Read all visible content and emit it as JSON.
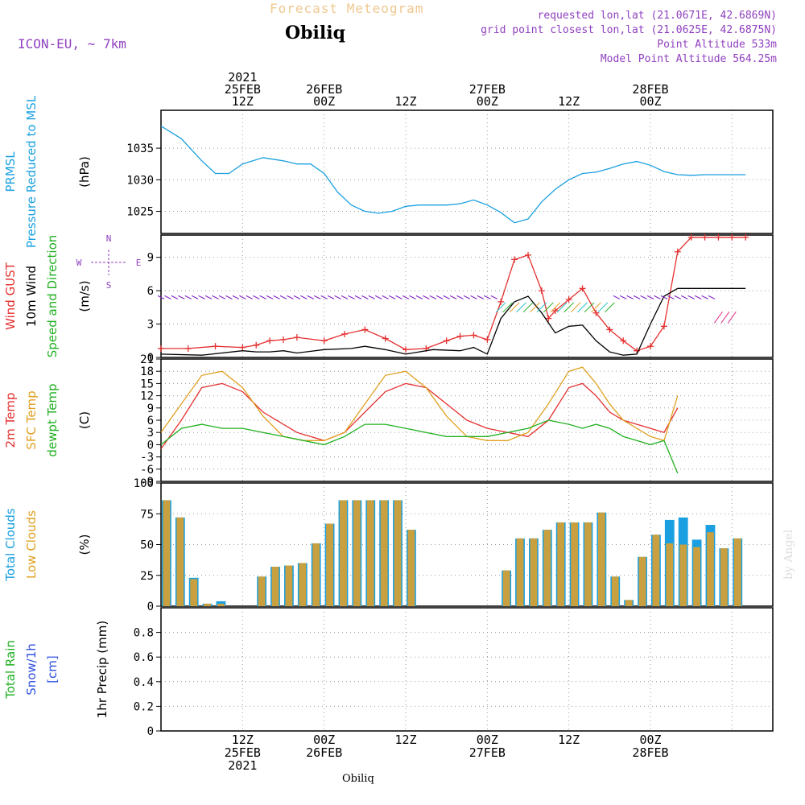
{
  "header": {
    "app_title": "Forecast Meteogram",
    "location": "Obiliq",
    "model": "ICON-EU, ~ 7km",
    "requested": "requested lon,lat (21.0671E, 42.6869N)",
    "grid_point": "grid point closest lon,lat (21.0625E, 42.6875N)",
    "point_alt": "Point Altitude 533m",
    "model_alt": "Model Point Altitude 564.25m",
    "footer_location": "Obiliq",
    "credit": "by Angel"
  },
  "time_axis": {
    "top": [
      {
        "t": 12,
        "lines": [
          "2021",
          "25FEB",
          "12Z"
        ]
      },
      {
        "t": 24,
        "lines": [
          "26FEB",
          "00Z"
        ]
      },
      {
        "t": 36,
        "lines": [
          "12Z"
        ]
      },
      {
        "t": 48,
        "lines": [
          "27FEB",
          "00Z"
        ]
      },
      {
        "t": 60,
        "lines": [
          "12Z"
        ]
      },
      {
        "t": 72,
        "lines": [
          "28FEB",
          "00Z"
        ]
      }
    ],
    "bottom": [
      {
        "t": 12,
        "lines": [
          "12Z",
          "25FEB",
          "2021"
        ]
      },
      {
        "t": 24,
        "lines": [
          "00Z",
          "26FEB"
        ]
      },
      {
        "t": 36,
        "lines": [
          "12Z"
        ]
      },
      {
        "t": 48,
        "lines": [
          "00Z",
          "27FEB"
        ]
      },
      {
        "t": 60,
        "lines": [
          "12Z"
        ]
      },
      {
        "t": 72,
        "lines": [
          "00Z",
          "28FEB"
        ]
      }
    ]
  },
  "panels": {
    "pressure": {
      "labels": [
        {
          "text": "PRMSL",
          "color": "#1aa0e0"
        },
        {
          "text": "Pressure Reduced to MSL",
          "color": "#1aa0e0"
        }
      ],
      "unit": "(hPa)",
      "ticks": [
        1025,
        1030,
        1035
      ]
    },
    "wind": {
      "labels": [
        {
          "text": "Wind GUST",
          "color": "#e53030"
        },
        {
          "text": "10m Wind",
          "color": "#000000"
        },
        {
          "text": "Speed and Direction",
          "color": "#20b020"
        }
      ],
      "unit": "(m/s)",
      "ticks": [
        0,
        3,
        6,
        9
      ],
      "compass": {
        "n": "N",
        "s": "S",
        "w": "W",
        "e": "E"
      }
    },
    "temp": {
      "labels": [
        {
          "text": "2m Temp",
          "color": "#e53030"
        },
        {
          "text": "SFC Temp",
          "color": "#e0a020"
        },
        {
          "text": "dewpt Temp",
          "color": "#20b020"
        }
      ],
      "unit": "(C)",
      "ticks": [
        -9,
        -6,
        -3,
        0,
        3,
        6,
        9,
        12,
        15,
        18,
        21
      ]
    },
    "clouds": {
      "labels": [
        {
          "text": "Total Clouds",
          "color": "#1aa0e0"
        },
        {
          "text": "Low Clouds",
          "color": "#e0a020"
        }
      ],
      "unit": "(%)",
      "ticks": [
        0,
        25,
        50,
        75,
        100
      ]
    },
    "precip": {
      "labels": [
        {
          "text": "Total Rain",
          "color": "#20b020"
        },
        {
          "text": "Snow/1h",
          "color": "#3050e0"
        },
        {
          "text": "[cm]",
          "color": "#3050e0"
        }
      ],
      "unit": "1hr Precip (mm)",
      "ticks": [
        "0",
        "0.2",
        "0.4",
        "0.6",
        "0.8"
      ]
    }
  },
  "colors": {
    "pressure": "#1aa0e0",
    "gust": "#e53030",
    "wind": "#000000",
    "t2m": "#e53030",
    "tsfc": "#e0a020",
    "dewpt": "#20b020",
    "total_cloud": "#1aa0e0",
    "low_cloud": "#c8a040",
    "model_text": "#9040c0"
  },
  "chart_data": [
    {
      "type": "line",
      "series": [
        {
          "name": "PRMSL",
          "x": [
            0,
            3,
            6,
            8,
            10,
            12,
            15,
            18,
            20,
            22,
            24,
            26,
            28,
            30,
            32,
            34,
            36,
            38,
            40,
            42,
            44,
            46,
            48,
            50,
            52,
            54,
            56,
            58,
            60,
            62,
            64,
            66,
            68,
            70,
            72,
            74,
            76,
            78,
            80,
            82,
            84,
            86
          ],
          "values": [
            1038.5,
            1036.5,
            1033,
            1031,
            1031,
            1032.5,
            1033.5,
            1033,
            1032.5,
            1032.5,
            1031,
            1028,
            1026,
            1025,
            1024.7,
            1025,
            1025.8,
            1026,
            1026,
            1026,
            1026.2,
            1026.8,
            1026,
            1024.8,
            1023.2,
            1023.8,
            1026.5,
            1028.5,
            1030,
            1031,
            1031.2,
            1031.8,
            1032.5,
            1032.9,
            1032.3,
            1031.3,
            1030.8,
            1030.7,
            1030.8,
            1030.8,
            1030.8,
            1030.8
          ]
        }
      ],
      "ylim": [
        1021.5,
        1041
      ]
    },
    {
      "type": "line",
      "series": [
        {
          "name": "Wind GUST",
          "x": [
            0,
            4,
            8,
            12,
            14,
            16,
            18,
            20,
            24,
            27,
            30,
            33,
            36,
            39,
            42,
            44,
            46,
            48,
            50,
            52,
            54,
            56,
            57,
            58,
            60,
            62,
            64,
            66,
            68,
            70,
            72,
            74,
            76,
            78,
            80,
            82,
            84,
            86
          ],
          "values": [
            0.8,
            0.8,
            1,
            0.9,
            1.1,
            1.5,
            1.6,
            1.8,
            1.5,
            2.1,
            2.5,
            1.7,
            0.7,
            0.8,
            1.5,
            1.9,
            2.0,
            1.6,
            5.0,
            8.8,
            9.2,
            6.0,
            3.5,
            4.2,
            5.2,
            6.2,
            4.0,
            2.5,
            1.5,
            0.6,
            1.0,
            2.8,
            9.5,
            10.8,
            10.8,
            10.8,
            10.8,
            10.8
          ]
        },
        {
          "name": "10m Wind",
          "x": [
            0,
            6,
            12,
            14,
            16,
            18,
            20,
            24,
            28,
            30,
            33,
            36,
            40,
            44,
            46,
            48,
            50,
            52,
            54,
            56,
            58,
            60,
            62,
            64,
            66,
            68,
            70,
            72,
            74,
            76,
            78,
            80,
            82,
            84,
            86
          ],
          "values": [
            0.3,
            0.2,
            0.6,
            0.5,
            0.5,
            0.6,
            0.4,
            0.7,
            0.8,
            1.0,
            0.7,
            0.3,
            0.7,
            0.6,
            0.9,
            0.3,
            3.5,
            5.0,
            5.5,
            4.0,
            2.2,
            2.8,
            2.9,
            1.5,
            0.5,
            0.2,
            0.3,
            3.0,
            5.5,
            6.2,
            6.2,
            6.2,
            6.2,
            6.2,
            6.2
          ]
        }
      ],
      "ylim": [
        0,
        11
      ]
    },
    {
      "type": "line",
      "series": [
        {
          "name": "2m Temp",
          "x": [
            0,
            3,
            6,
            9,
            12,
            15,
            18,
            20,
            22,
            24,
            27,
            30,
            33,
            36,
            39,
            42,
            45,
            48,
            51,
            54,
            57,
            60,
            62,
            64,
            66,
            68,
            70,
            72,
            74,
            76
          ],
          "values": [
            -1,
            6,
            14,
            15,
            13,
            8,
            5,
            3,
            2,
            1,
            3,
            8,
            13,
            15,
            14,
            10,
            6,
            4,
            3,
            2,
            6,
            14,
            15,
            12,
            8,
            6,
            5,
            4,
            3,
            9
          ]
        },
        {
          "name": "SFC Temp",
          "x": [
            0,
            3,
            6,
            9,
            12,
            15,
            18,
            21,
            24,
            27,
            30,
            33,
            36,
            39,
            42,
            45,
            48,
            51,
            54,
            57,
            60,
            62,
            64,
            66,
            68,
            70,
            72,
            74,
            76
          ],
          "values": [
            3,
            10,
            17,
            18,
            14,
            7,
            2,
            1,
            1,
            3,
            10,
            17,
            18,
            14,
            7,
            2,
            1,
            1,
            3,
            10,
            18,
            19,
            15,
            10,
            6,
            4,
            2,
            1,
            12
          ]
        },
        {
          "name": "dewpt Temp",
          "x": [
            0,
            3,
            6,
            9,
            12,
            15,
            18,
            21,
            24,
            27,
            30,
            33,
            36,
            39,
            42,
            45,
            48,
            51,
            54,
            57,
            60,
            62,
            64,
            66,
            68,
            70,
            72,
            74,
            76
          ],
          "values": [
            0,
            4,
            5,
            4,
            4,
            3,
            2,
            1,
            0,
            2,
            5,
            5,
            4,
            3,
            2,
            2,
            2,
            3,
            4,
            6,
            5,
            4,
            5,
            4,
            2,
            1,
            0,
            1,
            -7
          ]
        }
      ],
      "ylim": [
        -9,
        21
      ]
    },
    {
      "type": "bar",
      "series": [
        {
          "name": "Total Clouds",
          "x": [
            0,
            2,
            4,
            6,
            8,
            14,
            16,
            18,
            20,
            22,
            24,
            26,
            28,
            30,
            32,
            34,
            36,
            50,
            52,
            54,
            56,
            58,
            60,
            62,
            64,
            66,
            68,
            70,
            72,
            74,
            76,
            78,
            80,
            82,
            84
          ],
          "values": [
            86,
            72,
            23,
            2,
            4,
            24,
            32,
            33,
            35,
            51,
            67,
            86,
            86,
            86,
            86,
            86,
            62,
            29,
            55,
            55,
            62,
            68,
            68,
            68,
            76,
            24,
            5,
            40,
            58,
            70,
            72,
            54,
            66,
            47,
            55
          ]
        },
        {
          "name": "Low Clouds",
          "x": [
            0,
            2,
            4,
            6,
            8,
            14,
            16,
            18,
            20,
            22,
            24,
            26,
            28,
            30,
            32,
            34,
            36,
            50,
            52,
            54,
            56,
            58,
            60,
            62,
            64,
            66,
            68,
            70,
            72,
            74,
            76,
            78,
            80,
            82,
            84
          ],
          "values": [
            86,
            72,
            22,
            2,
            2,
            24,
            32,
            33,
            35,
            51,
            67,
            86,
            86,
            86,
            86,
            86,
            62,
            29,
            55,
            55,
            62,
            68,
            68,
            68,
            76,
            24,
            5,
            40,
            58,
            51,
            50,
            48,
            60,
            47,
            55
          ]
        }
      ],
      "ylim": [
        0,
        100
      ]
    },
    {
      "type": "bar",
      "series": [
        {
          "name": "1hr Precip",
          "x": [],
          "values": []
        }
      ],
      "ylim": [
        0,
        1
      ]
    }
  ]
}
